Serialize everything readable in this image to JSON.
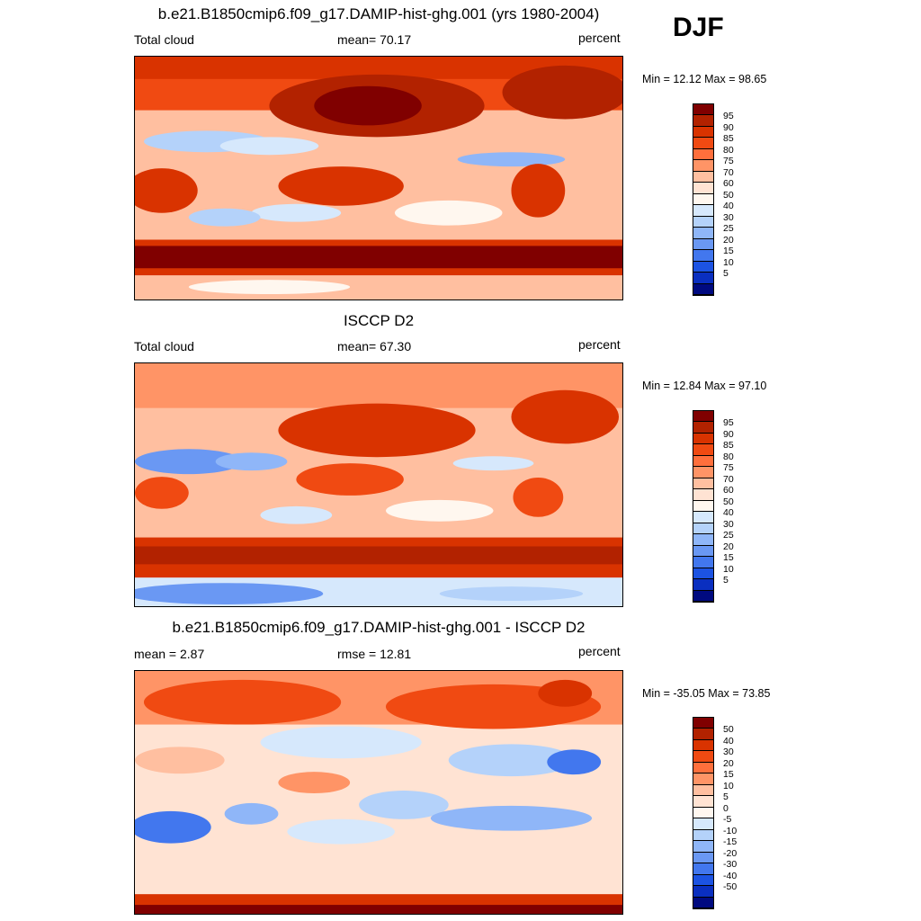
{
  "season": "DJF",
  "panels": [
    {
      "title": "b.e21.B1850cmip6.f09_g17.DAMIP-hist-ghg.001 (yrs 1980-2004)",
      "left_label": "Total cloud",
      "center_label": "mean=  70.17",
      "right_label": "percent",
      "minmax": "Min =  12.12 Max =  98.65",
      "kind": "abs"
    },
    {
      "title": "ISCCP D2",
      "left_label": "Total cloud",
      "center_label": "mean=  67.30",
      "right_label": "percent",
      "minmax": "Min =  12.84 Max =  97.10",
      "kind": "abs"
    },
    {
      "title": "b.e21.B1850cmip6.f09_g17.DAMIP-hist-ghg.001 - ISCCP D2",
      "left_label": "mean =   2.87",
      "center_label": "rmse =  12.81",
      "right_label": "percent",
      "minmax": "Min = -35.05 Max =  73.85",
      "kind": "diff"
    }
  ],
  "colorbar_abs": {
    "labels": [
      "95",
      "90",
      "85",
      "80",
      "75",
      "70",
      "60",
      "50",
      "40",
      "30",
      "25",
      "20",
      "15",
      "10",
      "5"
    ],
    "colors": [
      "#800000",
      "#b22200",
      "#d93300",
      "#f04a12",
      "#ff6f3c",
      "#ff9466",
      "#ffbfa0",
      "#ffe3d3",
      "#fff7ef",
      "#d6e8fc",
      "#b4d2fa",
      "#8fb6f8",
      "#6a98f3",
      "#4277ee",
      "#1c53e3",
      "#0a2fc0",
      "#000a80"
    ]
  },
  "colorbar_diff": {
    "labels": [
      "50",
      "40",
      "30",
      "20",
      "15",
      "10",
      "5",
      "0",
      "-5",
      "-10",
      "-15",
      "-20",
      "-30",
      "-40",
      "-50"
    ],
    "colors": [
      "#800000",
      "#b22200",
      "#d93300",
      "#f04a12",
      "#ff6f3c",
      "#ff9466",
      "#ffbfa0",
      "#ffe3d3",
      "#fff7ef",
      "#d6e8fc",
      "#b4d2fa",
      "#8fb6f8",
      "#6a98f3",
      "#4277ee",
      "#1c53e3",
      "#0a2fc0",
      "#000a80"
    ]
  }
}
